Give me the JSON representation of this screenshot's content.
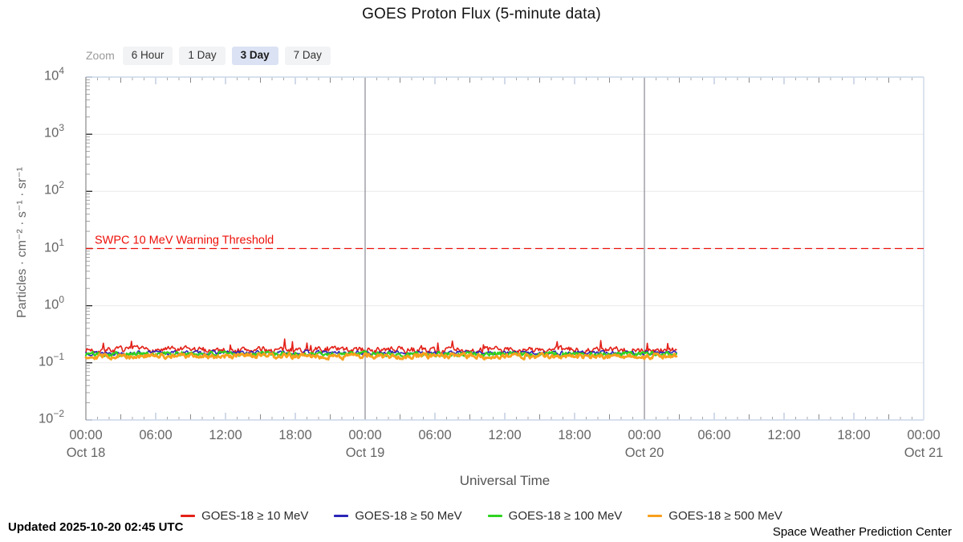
{
  "title": "GOES Proton Flux (5-minute data)",
  "zoom_control": {
    "label": "Zoom",
    "options": [
      {
        "label": "6 Hour",
        "selected": false
      },
      {
        "label": "1 Day",
        "selected": false
      },
      {
        "label": "3 Day",
        "selected": true
      },
      {
        "label": "7 Day",
        "selected": false
      }
    ]
  },
  "chart_data": {
    "type": "line",
    "title": "GOES Proton Flux (5-minute data)",
    "xlabel": "Universal Time",
    "ylabel": "Particles · cm⁻² · s⁻¹ · sr⁻¹",
    "y_scale": "log10",
    "ylim_exponents": [
      -2,
      4
    ],
    "y_tick_base": "10",
    "y_tick_exponents": [
      "4",
      "3",
      "2",
      "1",
      "0",
      "−1",
      "−2"
    ],
    "y_tick_exponent_values": [
      4,
      3,
      2,
      1,
      0,
      -1,
      -2
    ],
    "x_range_hours": [
      0,
      72
    ],
    "x_major_ticks": [
      {
        "hour": 0,
        "time": "00:00",
        "date": "Oct 18"
      },
      {
        "hour": 6,
        "time": "06:00"
      },
      {
        "hour": 12,
        "time": "12:00"
      },
      {
        "hour": 18,
        "time": "18:00"
      },
      {
        "hour": 24,
        "time": "00:00",
        "date": "Oct 19"
      },
      {
        "hour": 30,
        "time": "06:00"
      },
      {
        "hour": 36,
        "time": "12:00"
      },
      {
        "hour": 42,
        "time": "18:00"
      },
      {
        "hour": 48,
        "time": "00:00",
        "date": "Oct 20"
      },
      {
        "hour": 54,
        "time": "06:00"
      },
      {
        "hour": 60,
        "time": "12:00"
      },
      {
        "hour": 66,
        "time": "18:00"
      },
      {
        "hour": 72,
        "time": "00:00",
        "date": "Oct 21"
      }
    ],
    "day_boundary_lines_hours": [
      24,
      48
    ],
    "grid": true,
    "legend_position": "bottom",
    "threshold": {
      "value": 10,
      "label": "SWPC 10 MeV Warning Threshold",
      "color": "#ec1009"
    },
    "series": [
      {
        "name": "GOES-18 ≥ 10 MeV",
        "color": "#e32119",
        "width": 1.6,
        "base_flux": 0.168,
        "noise_amp": 0.045,
        "smooth": 0.5,
        "spike_prob": 0.05,
        "spike_amp": 0.16,
        "seed": 7,
        "start_hour": 0,
        "end_hour": 50.75,
        "step_minutes": 5
      },
      {
        "name": "GOES-18 ≥ 50 MeV",
        "color": "#2b25b8",
        "width": 1.6,
        "base_flux": 0.15,
        "noise_amp": 0.028,
        "smooth": 0.5,
        "spike_prob": 0,
        "spike_amp": 0,
        "seed": 13,
        "start_hour": 0,
        "end_hour": 50.75,
        "step_minutes": 5
      },
      {
        "name": "GOES-18 ≥ 100 MeV",
        "color": "#2fd31f",
        "width": 2.2,
        "base_flux": 0.143,
        "noise_amp": 0.035,
        "smooth": 0.45,
        "spike_prob": 0,
        "spike_amp": 0,
        "seed": 101,
        "start_hour": 0,
        "end_hour": 50.75,
        "step_minutes": 5
      },
      {
        "name": "GOES-18 ≥ 500 MeV",
        "color": "#f8a01d",
        "width": 2.8,
        "base_flux": 0.131,
        "noise_amp": 0.038,
        "smooth": 0.5,
        "spike_prob": 0,
        "spike_amp": 0,
        "seed": 29,
        "start_hour": 0,
        "end_hour": 50.75,
        "step_minutes": 5
      }
    ]
  },
  "footer": {
    "updated": "Updated 2025-10-20 02:45 UTC",
    "credit": "Space Weather Prediction Center"
  }
}
